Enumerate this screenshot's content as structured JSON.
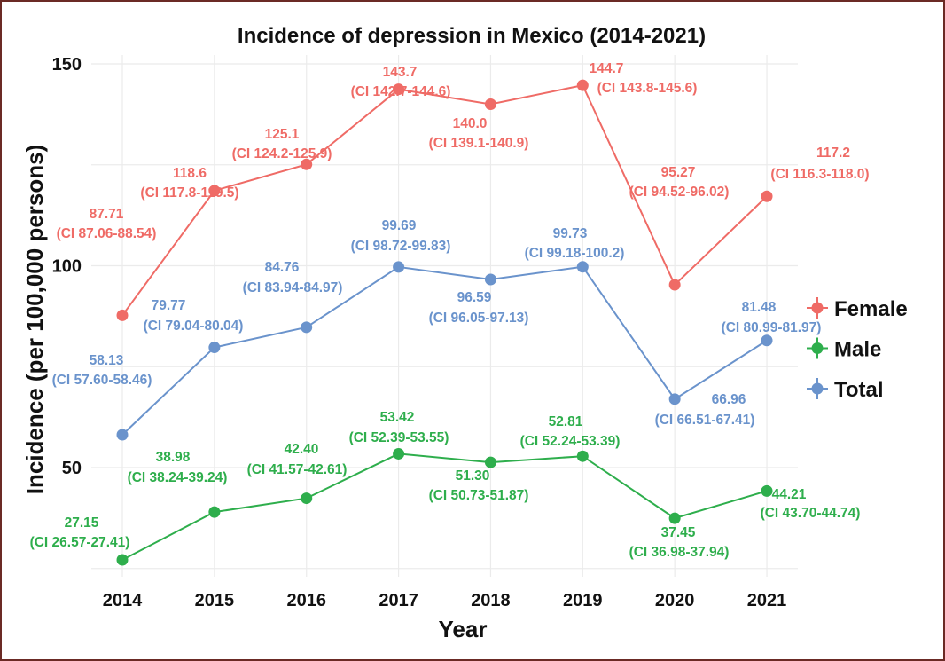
{
  "chart_data": {
    "type": "line",
    "title": "Incidence of depression in Mexico (2014-2021)",
    "xlabel": "Year",
    "ylabel": "Incidence (per 100,000 persons)",
    "x": [
      2014,
      2015,
      2016,
      2017,
      2018,
      2019,
      2020,
      2021
    ],
    "x_tick_labels": [
      "2014",
      "2015",
      "2016",
      "2017",
      "2018",
      "2019",
      "2020",
      "2021"
    ],
    "y_tick_labels": [
      "50",
      "100",
      "150"
    ],
    "y_ticks": [
      50,
      100,
      150
    ],
    "ylim": [
      25,
      150
    ],
    "grid": true,
    "legend_placement": "right",
    "series": [
      {
        "name": "Female",
        "color": "#ef6b66",
        "values": [
          87.71,
          118.6,
          125.1,
          143.7,
          140.0,
          144.7,
          95.27,
          117.2
        ],
        "value_labels": [
          "87.71",
          "118.6",
          "125.1",
          "143.7",
          "140.0",
          "144.7",
          "95.27",
          "117.2"
        ],
        "ci_labels": [
          "(CI 87.06-88.54)",
          "(CI 117.8-119.5)",
          "(CI 124.2-125.9)",
          "(CI 142.7-144.6)",
          "(CI 139.1-140.9)",
          "(CI 143.8-145.6)",
          "(CI 94.52-96.02)",
          "(CI 116.3-118.0)"
        ]
      },
      {
        "name": "Male",
        "color": "#2eae4c",
        "values": [
          27.15,
          38.98,
          42.4,
          53.42,
          51.3,
          52.81,
          37.45,
          44.21
        ],
        "value_labels": [
          "27.15",
          "38.98",
          "42.40",
          "53.42",
          "51.30",
          "52.81",
          "37.45",
          "44.21"
        ],
        "ci_labels": [
          "(CI 26.57-27.41)",
          "(CI 38.24-39.24)",
          "(CI 41.57-42.61)",
          "(CI 52.39-53.55)",
          "(CI 50.73-51.87)",
          "(CI 52.24-53.39)",
          "(CI 36.98-37.94)",
          "(CI 43.70-44.74)"
        ]
      },
      {
        "name": "Total",
        "color": "#6a93cc",
        "values": [
          58.13,
          79.77,
          84.76,
          99.69,
          96.59,
          99.73,
          66.96,
          81.48
        ],
        "value_labels": [
          "58.13",
          "79.77",
          "84.76",
          "99.69",
          "96.59",
          "99.73",
          "66.96",
          "81.48"
        ],
        "ci_labels": [
          "(CI 57.60-58.46)",
          "(CI 79.04-80.04)",
          "(CI 83.94-84.97)",
          "(CI 98.72-99.83)",
          "(CI 96.05-97.13)",
          "(CI 99.18-100.2)",
          "(CI 66.51-67.41)",
          "(CI 80.99-81.97)"
        ]
      }
    ]
  }
}
